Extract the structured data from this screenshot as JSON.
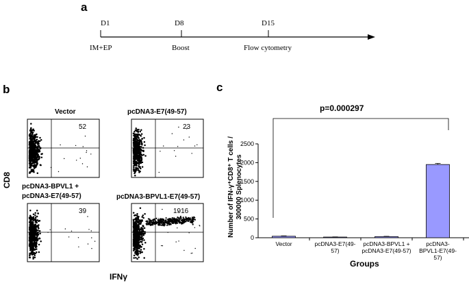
{
  "panel_a": {
    "letter": "a",
    "days": [
      "D1",
      "D8",
      "D15"
    ],
    "events": [
      "IM+EP",
      "Boost",
      "Flow cytometry"
    ]
  },
  "panel_b": {
    "letter": "b",
    "y_axis": "CD8",
    "x_axis": "IFNγ",
    "plots": [
      {
        "title": "Vector",
        "count": "52",
        "density": "low"
      },
      {
        "title": "pcDNA3-E7(49-57)",
        "count": "23",
        "density": "low"
      },
      {
        "title_lines": [
          "pcDNA3-BPVL1 +",
          "pcDNA3-E7(49-57)"
        ],
        "count": "39",
        "density": "low"
      },
      {
        "title": "pcDNA3-BPVL1-E7(49-57)",
        "count": "1916",
        "density": "high"
      }
    ]
  },
  "panel_c": {
    "letter": "c",
    "pvalue": "p=0.000297",
    "ylabel_line1": "Number of IFN-γ⁺CD8⁺ T cells /",
    "ylabel_line2": "300000 Splenocytes",
    "xlabel": "Groups",
    "bar_color": "#9999ff"
  },
  "chart_data": {
    "type": "bar",
    "categories": [
      [
        "Vector"
      ],
      [
        "pcDNA3-E7(49-",
        "57)"
      ],
      [
        "pcDNA3-BPVL1 +",
        "pcDNA3-E7(49-57)"
      ],
      [
        "pcDNA3-",
        "BPVL1-E7(49-",
        "57)"
      ]
    ],
    "values": [
      40,
      18,
      30,
      1950
    ],
    "errors": [
      10,
      5,
      8,
      30
    ],
    "ylim": [
      0,
      2500
    ],
    "yticks": [
      "0",
      "500",
      "1000",
      "1500",
      "2000",
      "2500"
    ],
    "xlabel": "Groups",
    "ylabel": "Number of IFN-γ⁺CD8⁺ T cells / 300000 Splenocytes"
  }
}
